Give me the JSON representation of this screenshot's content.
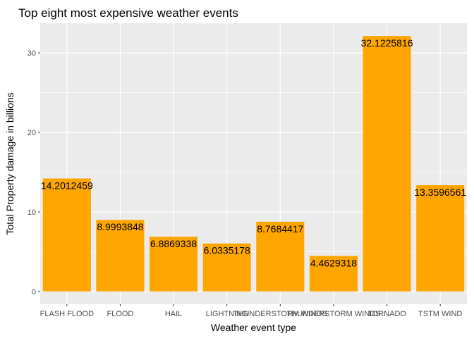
{
  "chart_data": {
    "type": "bar",
    "title": "Top eight most expensive weather events",
    "xlabel": "Weather event type",
    "ylabel": "Total Property damage in billions",
    "categories": [
      "FLASH FLOOD",
      "FLOOD",
      "HAIL",
      "LIGHTNING",
      "THUNDERSTORM WINDS",
      "THUNDERSTORM WINDS",
      "TORNADO",
      "TSTM WIND"
    ],
    "values": [
      14.2012459,
      8.9993848,
      6.8869338,
      6.0335178,
      8.7684417,
      4.4629318,
      32.1225816,
      13.3596561
    ],
    "data_labels": [
      "14.2012459",
      "8.9993848",
      "6.8869338",
      "6.0335178",
      "8.7684417",
      "4.4629318",
      "32.1225816",
      "13.3596561"
    ],
    "yticks": [
      0,
      10,
      20,
      30
    ],
    "yticklabels": [
      "0",
      "10",
      "20",
      "30"
    ],
    "ylim": [
      -1.606,
      33.73
    ],
    "grid": true,
    "bar_color": "#FFA500",
    "panel_color": "#EBEBEB",
    "grid_color": "#FFFFFF"
  }
}
